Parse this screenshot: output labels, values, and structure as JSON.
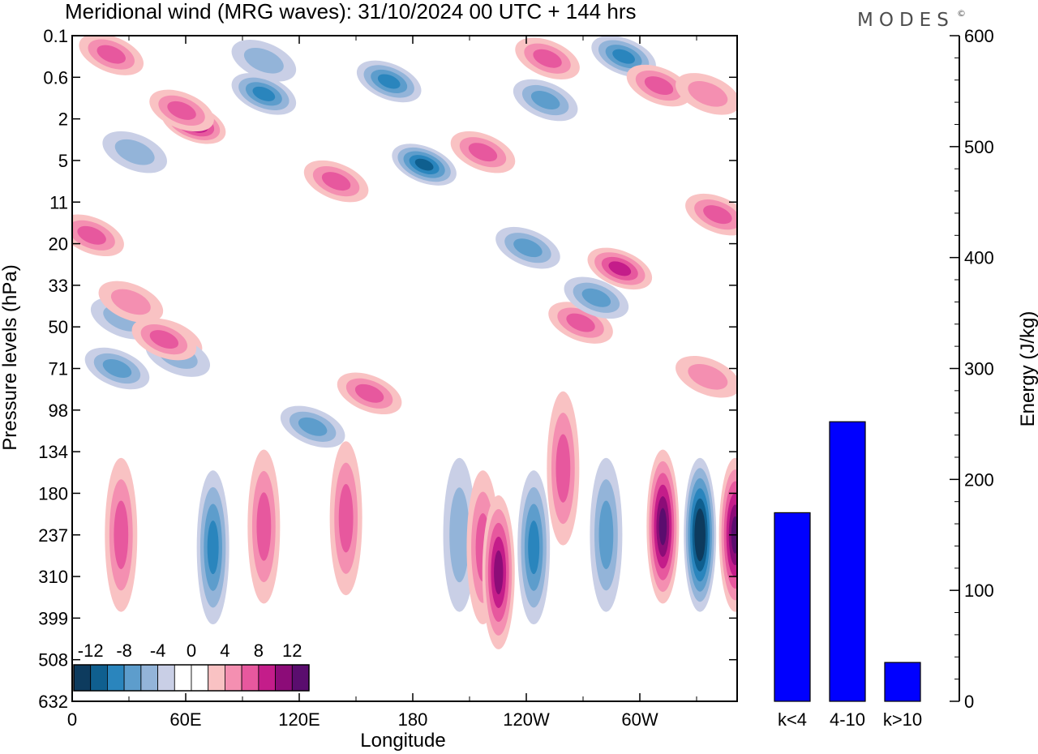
{
  "title": "Meridional wind (MRG waves):  31/10/2024  00 UTC  + 144 hrs",
  "logo": "MODES",
  "logo_mark": "©",
  "chart_data": [
    {
      "type": "heatmap",
      "xlabel": "Longitude",
      "ylabel": "Pressure levels (hPa)",
      "x_ticks": [
        "0",
        "60E",
        "120E",
        "180",
        "120W",
        "60W"
      ],
      "x_range": [
        0,
        340
      ],
      "y_ticks": [
        "0.1",
        "0.6",
        "2",
        "5",
        "11",
        "20",
        "33",
        "50",
        "71",
        "98",
        "134",
        "180",
        "237",
        "310",
        "399",
        "508",
        "632"
      ],
      "colorbar": {
        "levels": [
          -14,
          -12,
          -10,
          -8,
          -6,
          -4,
          -2,
          0,
          2,
          4,
          6,
          8,
          10,
          12,
          14
        ],
        "labels": [
          "-12",
          "-8",
          "-4",
          "0",
          "4",
          "8",
          "12"
        ],
        "colors": [
          "#0d3b5e",
          "#0f5f8f",
          "#2a85bd",
          "#5d9dcc",
          "#93b4d9",
          "#c9cfe6",
          "#ffffff",
          "#ffffff",
          "#f9c2c3",
          "#f48fb1",
          "#e7589e",
          "#c41d8a",
          "#8c0c78",
          "#5a0d6e"
        ]
      },
      "features": [
        {
          "lon": 20,
          "p_index": 0.45,
          "value": 6
        },
        {
          "lon": 62,
          "p_index": 2.1,
          "value": 9
        },
        {
          "lon": 56,
          "p_index": 1.8,
          "value": 6
        },
        {
          "lon": 98,
          "p_index": 0.6,
          "value": -4
        },
        {
          "lon": 98,
          "p_index": 1.4,
          "value": -7
        },
        {
          "lon": 162,
          "p_index": 1.1,
          "value": -7
        },
        {
          "lon": 180,
          "p_index": 3.1,
          "value": -10
        },
        {
          "lon": 135,
          "p_index": 3.5,
          "value": 5
        },
        {
          "lon": 210,
          "p_index": 2.8,
          "value": 6
        },
        {
          "lon": 243,
          "p_index": 0.55,
          "value": 6
        },
        {
          "lon": 282,
          "p_index": 0.5,
          "value": -7
        },
        {
          "lon": 242,
          "p_index": 1.55,
          "value": -6
        },
        {
          "lon": 300,
          "p_index": 1.2,
          "value": 5
        },
        {
          "lon": 325,
          "p_index": 1.4,
          "value": 4
        },
        {
          "lon": 330,
          "p_index": 4.3,
          "value": 6
        },
        {
          "lon": 32,
          "p_index": 2.8,
          "value": -4
        },
        {
          "lon": 10,
          "p_index": 4.8,
          "value": 5
        },
        {
          "lon": 26,
          "p_index": 6.8,
          "value": -3
        },
        {
          "lon": 50,
          "p_index": 7.3,
          "value": 3
        },
        {
          "lon": 54,
          "p_index": 7.7,
          "value": -3
        },
        {
          "lon": 30,
          "p_index": 6.4,
          "value": 4
        },
        {
          "lon": 280,
          "p_index": 5.6,
          "value": 7
        },
        {
          "lon": 260,
          "p_index": 6.9,
          "value": 6
        },
        {
          "lon": 268,
          "p_index": 6.3,
          "value": -6
        },
        {
          "lon": 233,
          "p_index": 5.1,
          "value": -5
        },
        {
          "lon": 325,
          "p_index": 8.2,
          "value": 4
        },
        {
          "lon": 23,
          "p_index": 8.0,
          "value": -6
        },
        {
          "lon": 47,
          "p_index": 7.3,
          "value": 5
        },
        {
          "lon": 152,
          "p_index": 8.6,
          "value": 6
        },
        {
          "lon": 123,
          "p_index": 9.4,
          "value": -5
        },
        {
          "lon": 25,
          "p_index": 12.0,
          "value": 6
        },
        {
          "lon": 72,
          "p_index": 12.3,
          "value": -8
        },
        {
          "lon": 98,
          "p_index": 11.8,
          "value": 6
        },
        {
          "lon": 140,
          "p_index": 11.6,
          "value": 6
        },
        {
          "lon": 198,
          "p_index": 12.0,
          "value": -3
        },
        {
          "lon": 210,
          "p_index": 12.3,
          "value": 5
        },
        {
          "lon": 218,
          "p_index": 12.9,
          "value": 10
        },
        {
          "lon": 236,
          "p_index": 12.3,
          "value": -7
        },
        {
          "lon": 251,
          "p_index": 10.4,
          "value": 6
        },
        {
          "lon": 273,
          "p_index": 12.0,
          "value": -6
        },
        {
          "lon": 302,
          "p_index": 11.8,
          "value": 12
        },
        {
          "lon": 321,
          "p_index": 12.0,
          "value": -14
        },
        {
          "lon": 339,
          "p_index": 12.0,
          "value": 11
        }
      ]
    },
    {
      "type": "bar",
      "categories": [
        "k<4",
        "4-10",
        "k>10"
      ],
      "values": [
        170,
        252,
        35
      ],
      "ylabel": "Energy (J/kg)",
      "ylim": [
        0,
        600
      ],
      "y_ticks": [
        0,
        100,
        200,
        300,
        400,
        500,
        600
      ],
      "color": "#0000ff"
    }
  ]
}
